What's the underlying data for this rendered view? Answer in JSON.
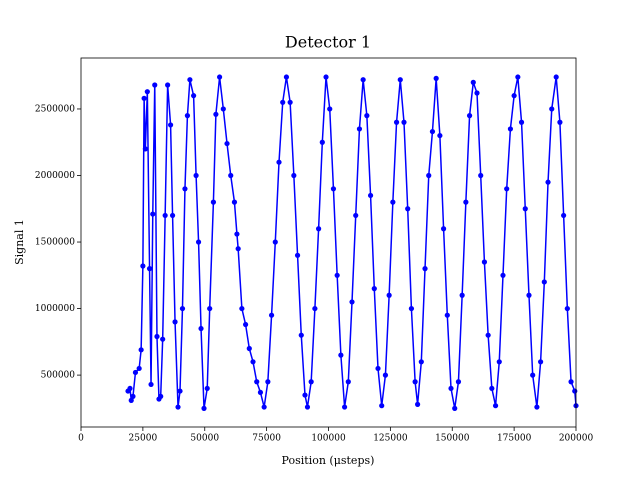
{
  "chart_data": {
    "type": "line",
    "title": "Detector 1",
    "x_label": "Position (μsteps)",
    "y_label": "Signal 1",
    "color": "#0000ff",
    "markers": true,
    "grid": false,
    "xlim": [
      0,
      200000
    ],
    "xticks": [
      0,
      25000,
      50000,
      75000,
      100000,
      125000,
      150000,
      175000,
      200000
    ],
    "ylim": [
      110000,
      2883000
    ],
    "yticks": [
      500000,
      1000000,
      1500000,
      2000000,
      2500000
    ],
    "x": [
      19000,
      19800,
      20300,
      21000,
      22000,
      23500,
      24300,
      25000,
      25500,
      26000,
      26800,
      27700,
      28300,
      29000,
      29800,
      30700,
      31500,
      32200,
      33000,
      34000,
      35000,
      36200,
      37000,
      38000,
      39200,
      40000,
      41000,
      42000,
      43000,
      44000,
      45500,
      46500,
      47500,
      48500,
      49700,
      51000,
      52000,
      53500,
      54500,
      56000,
      57500,
      59000,
      60500,
      62000,
      63000,
      63500,
      65000,
      66500,
      68000,
      69500,
      71000,
      72500,
      74000,
      75500,
      77000,
      78500,
      80000,
      81500,
      83000,
      84500,
      86000,
      87500,
      89000,
      90500,
      91500,
      93000,
      94500,
      96000,
      97500,
      99000,
      100500,
      102000,
      103500,
      105000,
      106500,
      108000,
      109500,
      111000,
      112500,
      114000,
      115500,
      117000,
      118500,
      120000,
      121500,
      123000,
      124500,
      126000,
      127500,
      129000,
      130500,
      132000,
      133500,
      135000,
      136000,
      137500,
      139000,
      140500,
      142000,
      143500,
      145000,
      146500,
      148000,
      149500,
      151000,
      152500,
      154000,
      155500,
      157000,
      158500,
      160000,
      161500,
      163000,
      164500,
      166000,
      167500,
      169000,
      170500,
      172000,
      173500,
      175000,
      176500,
      178000,
      179500,
      181000,
      182500,
      184200,
      185700,
      187200,
      188700,
      190200,
      192000,
      193500,
      195000,
      196500,
      198000,
      199500,
      200000
    ],
    "values": [
      380000,
      400000,
      310000,
      340000,
      520000,
      550000,
      690000,
      1320000,
      2580000,
      2200000,
      2630000,
      1300000,
      430000,
      1710000,
      2680000,
      790000,
      320000,
      340000,
      770000,
      1700000,
      2680000,
      2380000,
      1700000,
      900000,
      260000,
      380000,
      1000000,
      1900000,
      2450000,
      2720000,
      2600000,
      2000000,
      1500000,
      850000,
      250000,
      400000,
      1000000,
      1800000,
      2460000,
      2740000,
      2500000,
      2240000,
      2000000,
      1800000,
      1560000,
      1450000,
      1000000,
      880000,
      700000,
      600000,
      450000,
      370000,
      260000,
      450000,
      950000,
      1500000,
      2100000,
      2550000,
      2740000,
      2550000,
      2000000,
      1400000,
      800000,
      350000,
      260000,
      450000,
      1000000,
      1600000,
      2250000,
      2740000,
      2500000,
      1900000,
      1250000,
      650000,
      260000,
      450000,
      1050000,
      1700000,
      2350000,
      2720000,
      2450000,
      1850000,
      1150000,
      550000,
      270000,
      500000,
      1100000,
      1800000,
      2400000,
      2720000,
      2400000,
      1750000,
      1000000,
      450000,
      280000,
      600000,
      1300000,
      2000000,
      2330000,
      2730000,
      2300000,
      1600000,
      950000,
      400000,
      250000,
      450000,
      1100000,
      1800000,
      2450000,
      2700000,
      2620000,
      2000000,
      1350000,
      800000,
      400000,
      270000,
      600000,
      1250000,
      1900000,
      2350000,
      2600000,
      2740000,
      2400000,
      1750000,
      1100000,
      500000,
      260000,
      600000,
      1200000,
      1950000,
      2500000,
      2740000,
      2400000,
      1700000,
      1000000,
      450000,
      380000,
      270000
    ]
  }
}
